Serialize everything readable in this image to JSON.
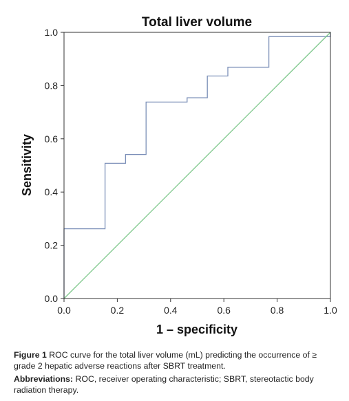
{
  "chart_data": {
    "type": "line",
    "title": "Total liver volume",
    "xlabel": "1 – specificity",
    "ylabel": "Sensitivity",
    "xlim": [
      0.0,
      1.0
    ],
    "ylim": [
      0.0,
      1.0
    ],
    "xticks": [
      "0.0",
      "0.2",
      "0.4",
      "0.6",
      "0.8",
      "1.0"
    ],
    "yticks": [
      "0.0",
      "0.2",
      "0.4",
      "0.6",
      "0.8",
      "1.0"
    ],
    "grid": false,
    "legend": "none",
    "series": [
      {
        "color": "#7b8fb8",
        "style": "step",
        "x": [
          0.0,
          0.0,
          0.154,
          0.154,
          0.231,
          0.231,
          0.308,
          0.308,
          0.462,
          0.462,
          0.538,
          0.538,
          0.615,
          0.615,
          0.769,
          0.769,
          1.0,
          1.0
        ],
        "y": [
          0.0,
          0.262,
          0.262,
          0.508,
          0.508,
          0.541,
          0.541,
          0.738,
          0.738,
          0.754,
          0.754,
          0.836,
          0.836,
          0.869,
          0.869,
          0.984,
          0.984,
          1.0
        ]
      },
      {
        "color": "#7cc78a",
        "style": "diagonal",
        "x": [
          0.0,
          1.0
        ],
        "y": [
          0.0,
          1.0
        ]
      }
    ]
  },
  "caption": {
    "figure_label": "Figure 1",
    "figure_text": " ROC curve for the total liver volume (mL) predicting the occurrence of ≥ grade 2 hepatic adverse reactions after SBRT treatment.",
    "abbrev_label": "Abbreviations:",
    "abbrev_text": " ROC, receiver operating characteristic; SBRT, stereotactic body radiation therapy."
  }
}
